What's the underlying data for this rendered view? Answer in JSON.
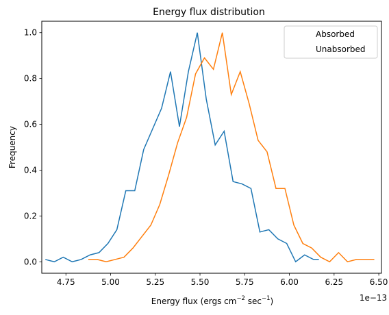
{
  "chart_data": {
    "type": "line",
    "step": true,
    "title": "Energy flux distribution",
    "xlabel": "Energy flux (ergs cm",
    "xlabel_sup1": "−2",
    "xlabel_mid": " sec",
    "xlabel_sup2": "−1",
    "xlabel_end": ")",
    "ylabel": "Frequency",
    "x_scale_label": "1e−13",
    "xlim": [
      4.615,
      6.515
    ],
    "ylim": [
      -0.05,
      1.05
    ],
    "x_ticks": [
      4.75,
      5.0,
      5.25,
      5.5,
      5.75,
      6.0,
      6.25,
      6.5
    ],
    "x_tick_labels": [
      "4.75",
      "5.00",
      "5.25",
      "5.50",
      "5.75",
      "6.00",
      "6.25",
      "6.50"
    ],
    "y_ticks": [
      0.0,
      0.2,
      0.4,
      0.6,
      0.8,
      1.0
    ],
    "y_tick_labels": [
      "0.0",
      "0.2",
      "0.4",
      "0.6",
      "0.8",
      "1.0"
    ],
    "legend": {
      "position": "top-right",
      "show_markers": false
    },
    "series": [
      {
        "name": "Absorbed",
        "color": "#1f77b4",
        "x": [
          4.635,
          4.685,
          4.735,
          4.785,
          4.835,
          4.885,
          4.935,
          4.985,
          5.035,
          5.085,
          5.135,
          5.185,
          5.235,
          5.285,
          5.335,
          5.385,
          5.435,
          5.485,
          5.535,
          5.585,
          5.635,
          5.685,
          5.735,
          5.785,
          5.835,
          5.885,
          5.935,
          5.985,
          6.035,
          6.085,
          6.135,
          6.165
        ],
        "y": [
          0.01,
          0.0,
          0.02,
          0.0,
          0.01,
          0.03,
          0.04,
          0.08,
          0.14,
          0.31,
          0.31,
          0.49,
          0.58,
          0.67,
          0.83,
          0.59,
          0.83,
          1.0,
          0.71,
          0.51,
          0.57,
          0.35,
          0.34,
          0.32,
          0.13,
          0.14,
          0.1,
          0.08,
          0.0,
          0.03,
          0.01,
          0.01
        ]
      },
      {
        "name": "Unabsorbed",
        "color": "#ff7f0e",
        "x": [
          4.875,
          4.925,
          4.975,
          5.025,
          5.075,
          5.125,
          5.175,
          5.225,
          5.275,
          5.325,
          5.375,
          5.425,
          5.475,
          5.525,
          5.575,
          5.625,
          5.675,
          5.725,
          5.775,
          5.825,
          5.875,
          5.925,
          5.975,
          6.025,
          6.075,
          6.125,
          6.175,
          6.225,
          6.275,
          6.325,
          6.375,
          6.425,
          6.475
        ],
        "y": [
          0.01,
          0.01,
          0.0,
          0.01,
          0.02,
          0.06,
          0.11,
          0.16,
          0.25,
          0.38,
          0.52,
          0.63,
          0.82,
          0.89,
          0.84,
          1.0,
          0.73,
          0.83,
          0.69,
          0.53,
          0.48,
          0.32,
          0.32,
          0.16,
          0.08,
          0.06,
          0.02,
          0.0,
          0.04,
          0.0,
          0.01,
          0.01,
          0.01
        ]
      }
    ]
  }
}
